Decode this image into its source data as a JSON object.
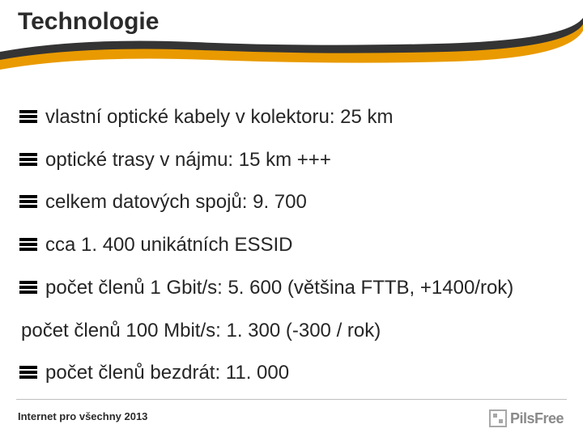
{
  "colors": {
    "orange": "#e99a00",
    "dark_gray": "#343434",
    "text": "#262626",
    "black": "#000000",
    "footer_line": "#bfbfbf",
    "logo_gray": "#a8a8a8",
    "logo_text": "#8a8a8a",
    "white": "#ffffff"
  },
  "title": "Technologie",
  "title_fontsize": 30,
  "bullets": [
    {
      "text": "vlastní optické kabely v kolektoru: 25 km",
      "has_icon": true,
      "indent": true
    },
    {
      "text": "optické trasy v nájmu: 15 km +++",
      "has_icon": true,
      "indent": true
    },
    {
      "text": "celkem datových spojů: 9. 700",
      "has_icon": true,
      "indent": true
    },
    {
      "text": "cca 1. 400 unikátních ESSID",
      "has_icon": true,
      "indent": true
    },
    {
      "text": "počet členů 1 Gbit/s: 5. 600 (většina FTTB, +1400/rok)",
      "has_icon": true,
      "indent": true
    },
    {
      "text": "počet  členů 100 Mbit/s: 1. 300 (-300 / rok)",
      "has_icon": false,
      "indent": false
    },
    {
      "text": "počet členů bezdrát: 11. 000",
      "has_icon": true,
      "indent": true
    }
  ],
  "bullet_fontsize": 24,
  "footer": "Internet pro všechny 2013",
  "logo_text": "PilsFree"
}
